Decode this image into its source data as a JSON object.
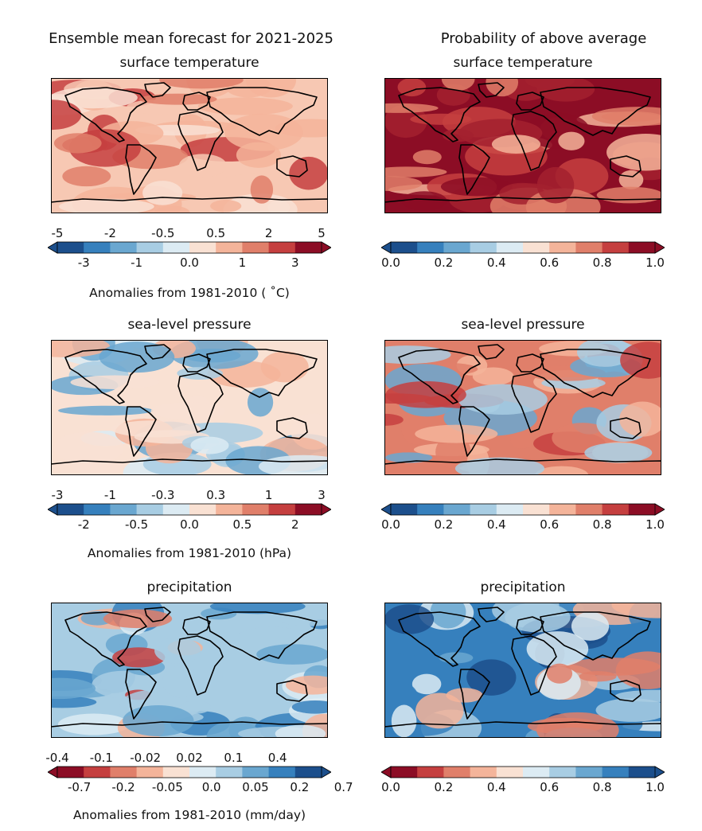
{
  "header": {
    "left_title": "Ensemble mean forecast for 2021-2025",
    "right_title": "Probability of above average"
  },
  "chart_data": [
    {
      "type": "heatmap",
      "title": "surface temperature",
      "column": "ensemble-mean",
      "levels": [
        -5,
        -3,
        -2,
        -1,
        -0.5,
        0.0,
        0.5,
        1,
        2,
        3,
        5
      ],
      "ticks_top": [
        "-5",
        "-2",
        "-0.5",
        "0.5",
        "2",
        "5"
      ],
      "ticks_bottom": [
        "-3",
        "-1",
        "0.0",
        "1",
        "3"
      ],
      "colorbar_label": "Anomalies from 1981-2010 ( ˚C)",
      "colormap": "red-warm"
    },
    {
      "type": "heatmap",
      "title": "surface temperature",
      "column": "probability",
      "levels": [
        0.0,
        0.1,
        0.2,
        0.3,
        0.4,
        0.5,
        0.6,
        0.7,
        0.8,
        0.9,
        1.0
      ],
      "ticks_bottom": [
        "0.0",
        "0.2",
        "0.4",
        "0.6",
        "0.8",
        "1.0"
      ],
      "colormap": "blue-white-red"
    },
    {
      "type": "heatmap",
      "title": "sea-level pressure",
      "column": "ensemble-mean",
      "levels": [
        -3,
        -2,
        -1,
        -0.5,
        -0.3,
        0.0,
        0.3,
        0.5,
        1,
        2,
        3
      ],
      "ticks_top": [
        "-3",
        "-1",
        "-0.3",
        "0.3",
        "1",
        "3"
      ],
      "ticks_bottom": [
        "-2",
        "-0.5",
        "0.0",
        "0.5",
        "2"
      ],
      "colorbar_label": "Anomalies from 1981-2010 (hPa)",
      "colormap": "blue-white-red"
    },
    {
      "type": "heatmap",
      "title": "sea-level pressure",
      "column": "probability",
      "levels": [
        0.0,
        0.1,
        0.2,
        0.3,
        0.4,
        0.5,
        0.6,
        0.7,
        0.8,
        0.9,
        1.0
      ],
      "ticks_bottom": [
        "0.0",
        "0.2",
        "0.4",
        "0.6",
        "0.8",
        "1.0"
      ],
      "colormap": "blue-white-red"
    },
    {
      "type": "heatmap",
      "title": "precipitation",
      "column": "ensemble-mean",
      "levels": [
        -0.7,
        -0.4,
        -0.2,
        -0.1,
        -0.05,
        -0.02,
        0.0,
        0.02,
        0.05,
        0.1,
        0.2,
        0.4,
        0.7
      ],
      "ticks_top": [
        "-0.4",
        "-0.1",
        "-0.02",
        "0.02",
        "0.1",
        "0.4"
      ],
      "ticks_bottom": [
        "-0.7",
        "-0.2",
        "-0.05",
        "0.0",
        "0.05",
        "0.2",
        "0.7"
      ],
      "colorbar_label": "Anomalies from 1981-2010 (mm/day)",
      "colormap": "red-white-blue"
    },
    {
      "type": "heatmap",
      "title": "precipitation",
      "column": "probability",
      "levels": [
        0.0,
        0.1,
        0.2,
        0.3,
        0.4,
        0.5,
        0.6,
        0.7,
        0.8,
        0.9,
        1.0
      ],
      "ticks_bottom": [
        "0.0",
        "0.2",
        "0.4",
        "0.6",
        "0.8",
        "1.0"
      ],
      "colormap": "red-white-blue"
    }
  ],
  "palettes": {
    "blue-white-red": [
      "#1c4f8c",
      "#3680bd",
      "#6aa7d0",
      "#a8cde3",
      "#dcebf3",
      "#f9e1d3",
      "#f4b49a",
      "#e07f6a",
      "#c53f3f",
      "#8c0d25"
    ],
    "red-white-blue": [
      "#8c0d25",
      "#c53f3f",
      "#e07f6a",
      "#f4b49a",
      "#f9e1d3",
      "#dcebf3",
      "#a8cde3",
      "#6aa7d0",
      "#3680bd",
      "#1c4f8c"
    ],
    "red-warm": [
      "#1c4f8c",
      "#3680bd",
      "#6aa7d0",
      "#a8cde3",
      "#dcebf3",
      "#f9e1d3",
      "#f4b49a",
      "#e07f6a",
      "#c53f3f",
      "#8c0d25"
    ]
  },
  "map_fill": {
    "tas_mean": [
      "#f7c8b3",
      "#f9e1d3",
      "#f4b49a",
      "#e07f6a",
      "#c53f3f"
    ],
    "tas_prob": [
      "#8c0d25",
      "#c53f3f",
      "#a3212f",
      "#e07f6a",
      "#f4b49a"
    ],
    "psl_mean": [
      "#f9e1d3",
      "#dcebf3",
      "#a8cde3",
      "#f4b49a",
      "#6aa7d0"
    ],
    "psl_prob": [
      "#e07f6a",
      "#6aa7d0",
      "#a8cde3",
      "#c53f3f",
      "#f4b49a"
    ],
    "pr_mean": [
      "#a8cde3",
      "#6aa7d0",
      "#f4b49a",
      "#e07f6a",
      "#dcebf3",
      "#c53f3f",
      "#3680bd"
    ],
    "pr_prob": [
      "#3680bd",
      "#a8cde3",
      "#6aa7d0",
      "#f4b49a",
      "#dcebf3",
      "#1c4f8c",
      "#e07f6a"
    ]
  }
}
